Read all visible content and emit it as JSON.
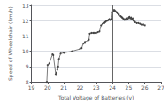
{
  "chart_data": {
    "type": "line",
    "xlabel": "Total Voltage of Batteries (v)",
    "ylabel": "Speed of Wheelchair (km/h)",
    "x": [
      19.95,
      20.0,
      20.1,
      20.3,
      20.35,
      20.5,
      20.55,
      20.6,
      20.65,
      20.7,
      20.8,
      21.0,
      21.5,
      22.0,
      22.1,
      22.2,
      22.3,
      22.5,
      22.55,
      22.6,
      22.7,
      22.8,
      22.85,
      23.0,
      23.1,
      23.2,
      23.3,
      23.4,
      23.5,
      23.55,
      23.6,
      23.65,
      23.7,
      23.75,
      23.8,
      23.85,
      23.9,
      23.95,
      24.0,
      24.05,
      24.1,
      24.15,
      24.2,
      24.25,
      24.3,
      24.35,
      24.4,
      24.5,
      24.55,
      24.6,
      24.65,
      24.7,
      24.75,
      24.8,
      24.85,
      24.9,
      24.95,
      25.0,
      25.05,
      25.1,
      25.15,
      25.2,
      25.25,
      25.3,
      25.35,
      25.4,
      25.5,
      25.6,
      25.7,
      25.8,
      25.9,
      26.0
    ],
    "values": [
      8.0,
      9.1,
      9.2,
      9.8,
      9.75,
      8.5,
      8.6,
      8.8,
      9.0,
      9.5,
      9.85,
      9.9,
      10.0,
      10.15,
      10.2,
      10.5,
      10.6,
      10.7,
      10.75,
      11.15,
      11.2,
      11.2,
      11.2,
      11.2,
      11.25,
      11.3,
      11.7,
      11.8,
      11.85,
      11.9,
      11.95,
      12.0,
      12.0,
      12.05,
      12.1,
      12.05,
      12.05,
      12.1,
      12.55,
      12.6,
      12.7,
      12.65,
      12.6,
      12.55,
      12.5,
      12.45,
      12.4,
      12.3,
      12.25,
      12.2,
      12.15,
      12.1,
      12.05,
      12.1,
      12.05,
      12.15,
      12.1,
      12.2,
      12.25,
      12.15,
      12.2,
      12.1,
      12.15,
      12.0,
      11.95,
      11.9,
      11.85,
      11.85,
      11.8,
      11.75,
      11.75,
      11.7
    ],
    "color": "#444444",
    "marker": "circle",
    "vlines": [
      {
        "x": 24,
        "color": "#666666"
      }
    ],
    "xlim": [
      19,
      27
    ],
    "ylim": [
      8,
      13
    ],
    "xticks": [
      19,
      20,
      21,
      22,
      23,
      24,
      25,
      26,
      27
    ],
    "yticks": [
      8,
      9,
      10,
      11,
      12,
      13
    ],
    "grid": true
  }
}
